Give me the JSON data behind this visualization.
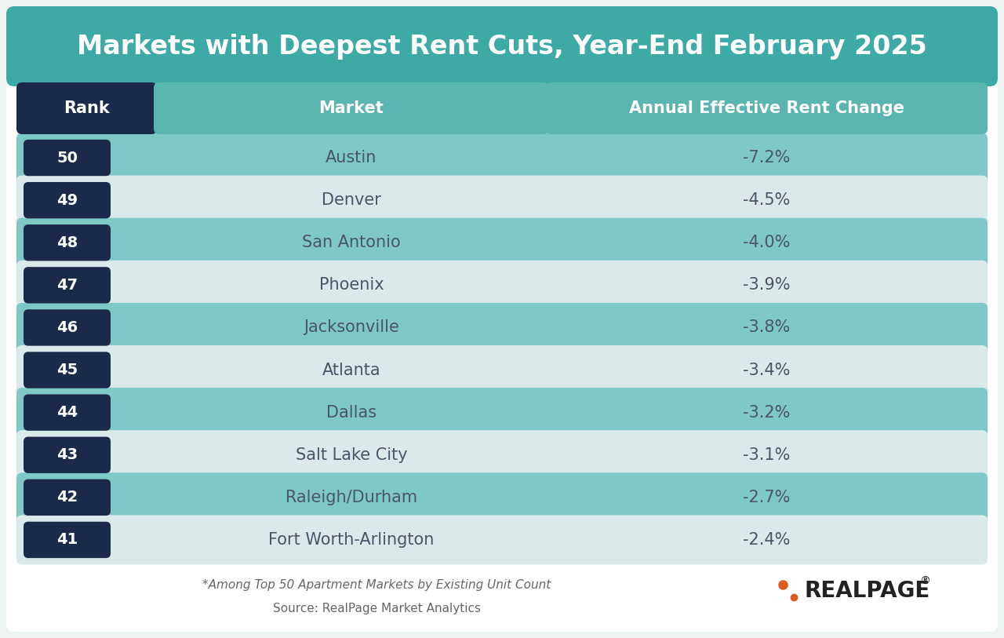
{
  "title": "Markets with Deepest Rent Cuts, Year-End February 2025",
  "title_bg_color": "#3daaa6",
  "title_text_color": "#ffffff",
  "header_rank_bg": "#1b2a4a",
  "header_market_bg": "#5ab5b0",
  "header_change_bg": "#5ab5b0",
  "header_text_color": "#ffffff",
  "col_rank_label": "Rank",
  "col_market_label": "Market",
  "col_change_label": "Annual Effective Rent Change",
  "rows": [
    {
      "rank": 50,
      "market": "Austin",
      "change": "-7.2%"
    },
    {
      "rank": 49,
      "market": "Denver",
      "change": "-4.5%"
    },
    {
      "rank": 48,
      "market": "San Antonio",
      "change": "-4.0%"
    },
    {
      "rank": 47,
      "market": "Phoenix",
      "change": "-3.9%"
    },
    {
      "rank": 46,
      "market": "Jacksonville",
      "change": "-3.8%"
    },
    {
      "rank": 45,
      "market": "Atlanta",
      "change": "-3.4%"
    },
    {
      "rank": 44,
      "market": "Dallas",
      "change": "-3.2%"
    },
    {
      "rank": 43,
      "market": "Salt Lake City",
      "change": "-3.1%"
    },
    {
      "rank": 42,
      "market": "Raleigh/Durham",
      "change": "-2.7%"
    },
    {
      "rank": 41,
      "market": "Fort Worth-Arlington",
      "change": "-2.4%"
    }
  ],
  "row_color_dark": "#7ec8c8",
  "row_color_light": "#daeaea",
  "rank_badge_color": "#1b2a4a",
  "rank_text_color": "#ffffff",
  "market_text_color": "#4a5568",
  "change_text_color": "#4a5568",
  "footer_note": "*Among Top 50 Apartment Markets by Existing Unit Count",
  "footer_source": "Source: RealPage Market Analytics",
  "footer_text_color": "#666666",
  "realpage_text_color": "#222222",
  "realpage_dot_color": "#e05a20",
  "bg_color": "#eef3f3",
  "outer_border_color": "#3daaa6"
}
